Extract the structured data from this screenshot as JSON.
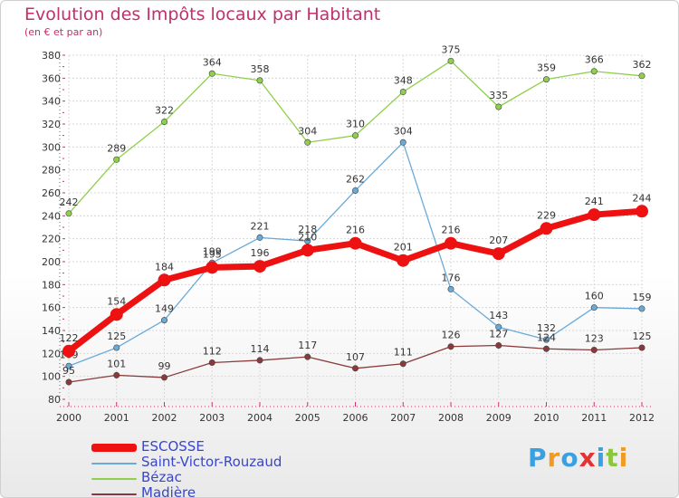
{
  "header": {
    "title": "Evolution des Impôts locaux par Habitant",
    "subtitle": "(en € et par an)"
  },
  "logo": {
    "text": "Proxiti",
    "letters": [
      {
        "ch": "P",
        "color": "#3aa0e0"
      },
      {
        "ch": "r",
        "color": "#f29a1f"
      },
      {
        "ch": "o",
        "color": "#3aa0e0"
      },
      {
        "ch": "x",
        "color": "#e53333"
      },
      {
        "ch": "i",
        "color": "#3aa0e0"
      },
      {
        "ch": "t",
        "color": "#8cc63f"
      },
      {
        "ch": "i",
        "color": "#f29a1f"
      }
    ]
  },
  "chart_data": {
    "type": "line",
    "title": "Evolution des Impôts locaux par Habitant",
    "subtitle": "(en € et par an)",
    "x": [
      "2000",
      "2001",
      "2002",
      "2003",
      "2004",
      "2005",
      "2006",
      "2007",
      "2008",
      "2009",
      "2010",
      "2011",
      "2012"
    ],
    "ylim": [
      80,
      380
    ],
    "yticks": [
      80,
      100,
      120,
      140,
      160,
      180,
      200,
      220,
      240,
      260,
      280,
      300,
      320,
      340,
      360,
      380
    ],
    "grid": true,
    "legend_position": "bottom-left",
    "series": [
      {
        "name": "Bézac",
        "color": "#8fd04a",
        "values": [
          242,
          289,
          322,
          364,
          358,
          304,
          310,
          348,
          375,
          335,
          359,
          366,
          362
        ]
      },
      {
        "name": "Saint-Victor-Rouzaud",
        "color": "#6aaad8",
        "values": [
          109,
          125,
          149,
          199,
          221,
          218,
          262,
          304,
          176,
          143,
          132,
          160,
          159
        ]
      },
      {
        "name": "Madière",
        "color": "#8a3a3a",
        "values": [
          95,
          101,
          99,
          112,
          114,
          117,
          107,
          111,
          126,
          127,
          124,
          123,
          125
        ]
      },
      {
        "name": "ESCOSSE",
        "color": "#ee1111",
        "values": [
          122,
          154,
          184,
          195,
          196,
          210,
          216,
          201,
          216,
          207,
          229,
          241,
          244
        ]
      }
    ],
    "legend_order": [
      "ESCOSSE",
      "Saint-Victor-Rouzaud",
      "Bézac",
      "Madière"
    ]
  }
}
